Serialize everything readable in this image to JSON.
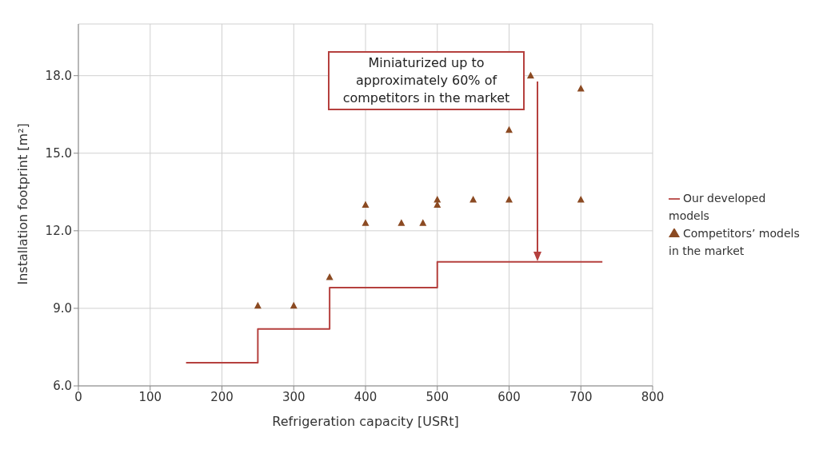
{
  "chart_data": {
    "type": "scatter",
    "xlabel": "Refrigeration capacity [USRt]",
    "ylabel": "Installation footprint [m²]",
    "xlim": [
      0,
      800
    ],
    "xticks": [
      0,
      100,
      200,
      300,
      400,
      500,
      600,
      700,
      800
    ],
    "ylim": [
      6,
      20
    ],
    "yticks": [
      {
        "value": 6,
        "label": "6.0"
      },
      {
        "value": 9,
        "label": "9.0"
      },
      {
        "value": 12,
        "label": "12.0"
      },
      {
        "value": 15,
        "label": "15.0"
      },
      {
        "value": 18,
        "label": "18.0"
      }
    ],
    "grid": true,
    "legend": "right",
    "series": [
      {
        "name": "Our developed models",
        "type": "step",
        "color": "#b5403e",
        "marker": "none",
        "x": [
          150,
          250,
          350,
          500,
          730
        ],
        "values": [
          6.9,
          8.2,
          9.8,
          10.8,
          10.8
        ]
      },
      {
        "name": "Competitors’ models in the market",
        "color": "#8b4a22",
        "marker": "triangle",
        "x": [
          250,
          300,
          350,
          400,
          400,
          450,
          480,
          500,
          500,
          550,
          600,
          600,
          630,
          700,
          700
        ],
        "values": [
          9.1,
          9.1,
          10.2,
          13.0,
          12.3,
          12.3,
          12.3,
          13.2,
          13.0,
          13.2,
          15.9,
          13.2,
          18.0,
          17.5,
          13.2
        ]
      }
    ],
    "annotations": [
      "Miniaturized up to approximately 60% of competitors in the market"
    ]
  }
}
